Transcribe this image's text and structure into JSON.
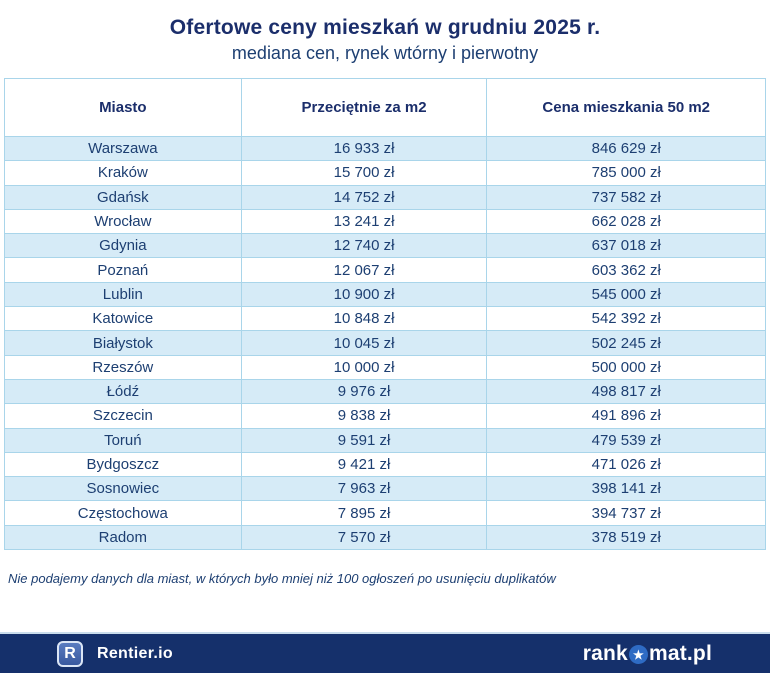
{
  "title": "Ofertowe ceny mieszkań w grudniu 2025 r.",
  "subtitle": "mediana cen, rynek wtórny i pierwotny",
  "colors": {
    "navy": "#1b2e6b",
    "text_navy": "#1d3f72",
    "row_alt": "#d6ebf7",
    "border_blue": "#a9d5ea",
    "bar_bg": "#15306b",
    "bar_top_line": "#c9dcec",
    "star_circle": "#2e6bc4"
  },
  "table": {
    "columns": [
      "Miasto",
      "Przeciętnie za m2",
      "Cena mieszkania 50 m2"
    ],
    "rows": [
      {
        "city": "Warszawa",
        "per_m2": "16 933 zł",
        "price_50m2": "846 629 zł"
      },
      {
        "city": "Kraków",
        "per_m2": "15 700 zł",
        "price_50m2": "785 000 zł"
      },
      {
        "city": "Gdańsk",
        "per_m2": "14 752 zł",
        "price_50m2": "737 582 zł"
      },
      {
        "city": "Wrocław",
        "per_m2": "13 241 zł",
        "price_50m2": "662 028 zł"
      },
      {
        "city": "Gdynia",
        "per_m2": "12 740 zł",
        "price_50m2": "637 018 zł"
      },
      {
        "city": "Poznań",
        "per_m2": "12 067 zł",
        "price_50m2": "603 362 zł"
      },
      {
        "city": "Lublin",
        "per_m2": "10 900 zł",
        "price_50m2": "545 000 zł"
      },
      {
        "city": "Katowice",
        "per_m2": "10 848 zł",
        "price_50m2": "542 392 zł"
      },
      {
        "city": "Białystok",
        "per_m2": "10 045 zł",
        "price_50m2": "502 245 zł"
      },
      {
        "city": "Rzeszów",
        "per_m2": "10 000 zł",
        "price_50m2": "500 000 zł"
      },
      {
        "city": "Łódź",
        "per_m2": "9 976 zł",
        "price_50m2": "498 817 zł"
      },
      {
        "city": "Szczecin",
        "per_m2": "9 838 zł",
        "price_50m2": "491 896 zł"
      },
      {
        "city": "Toruń",
        "per_m2": "9 591 zł",
        "price_50m2": "479 539 zł"
      },
      {
        "city": "Bydgoszcz",
        "per_m2": "9 421 zł",
        "price_50m2": "471 026 zł"
      },
      {
        "city": "Sosnowiec",
        "per_m2": "7 963 zł",
        "price_50m2": "398 141 zł"
      },
      {
        "city": "Częstochowa",
        "per_m2": "7 895 zł",
        "price_50m2": "394 737 zł"
      },
      {
        "city": "Radom",
        "per_m2": "7 570 zł",
        "price_50m2": "378 519 zł"
      }
    ]
  },
  "footnote": "Nie podajemy danych dla miast, w których było mniej niż 100 ogłoszeń po usunięciu duplikatów",
  "footer": {
    "rentier_badge": "R",
    "rentier_label": "Rentier.io",
    "rankomat_prefix": "rank",
    "rankomat_star": "★",
    "rankomat_suffix": "mat.pl"
  },
  "chart_data": {
    "type": "table",
    "title": "Ofertowe ceny mieszkań w grudniu 2025 r.",
    "subtitle": "mediana cen, rynek wtórny i pierwotny",
    "columns": [
      "Miasto",
      "Przeciętnie za m2 (zł)",
      "Cena mieszkania 50 m2 (zł)"
    ],
    "rows": [
      [
        "Warszawa",
        16933,
        846629
      ],
      [
        "Kraków",
        15700,
        785000
      ],
      [
        "Gdańsk",
        14752,
        737582
      ],
      [
        "Wrocław",
        13241,
        662028
      ],
      [
        "Gdynia",
        12740,
        637018
      ],
      [
        "Poznań",
        12067,
        603362
      ],
      [
        "Lublin",
        10900,
        545000
      ],
      [
        "Katowice",
        10848,
        542392
      ],
      [
        "Białystok",
        10045,
        502245
      ],
      [
        "Rzeszów",
        10000,
        500000
      ],
      [
        "Łódź",
        9976,
        498817
      ],
      [
        "Szczecin",
        9838,
        491896
      ],
      [
        "Toruń",
        9591,
        479539
      ],
      [
        "Bydgoszcz",
        9421,
        471026
      ],
      [
        "Sosnowiec",
        7963,
        398141
      ],
      [
        "Częstochowa",
        7895,
        394737
      ],
      [
        "Radom",
        7570,
        378519
      ]
    ],
    "annotations": [
      "Nie podajemy danych dla miast, w których było mniej niż 100 ogłoszeń po usunięciu duplikatów"
    ]
  }
}
